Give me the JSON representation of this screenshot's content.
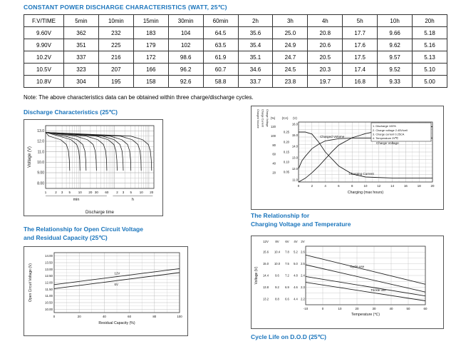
{
  "accent_color": "#1b75bc",
  "title": "CONSTANT POWER DISCHARGE CHARACTERISTICS (WATT, 25℃)",
  "note": "Note: The above characteristics data can be obtained within three charge/discharge cycles.",
  "table": {
    "headers": [
      "F.V/TIME",
      "5min",
      "10min",
      "15min",
      "30min",
      "60min",
      "2h",
      "3h",
      "4h",
      "5h",
      "10h",
      "20h"
    ],
    "rows": [
      [
        "9.60V",
        "362",
        "232",
        "183",
        "104",
        "64.5",
        "35.6",
        "25.0",
        "20.8",
        "17.7",
        "9.66",
        "5.18"
      ],
      [
        "9.90V",
        "351",
        "225",
        "179",
        "102",
        "63.5",
        "35.4",
        "24.9",
        "20.6",
        "17.6",
        "9.62",
        "5.16"
      ],
      [
        "10.2V",
        "337",
        "216",
        "172",
        "98.6",
        "61.9",
        "35.1",
        "24.7",
        "20.5",
        "17.5",
        "9.57",
        "5.13"
      ],
      [
        "10.5V",
        "323",
        "207",
        "166",
        "96.2",
        "60.7",
        "34.6",
        "24.5",
        "20.3",
        "17.4",
        "9.52",
        "5.10"
      ],
      [
        "10.8V",
        "304",
        "195",
        "158",
        "92.6",
        "58.8",
        "33.7",
        "23.8",
        "19.7",
        "16.8",
        "9.33",
        "5.00"
      ]
    ]
  },
  "sections": {
    "discharge_title": "Discharge Characteristics (25℃)",
    "ocv_title_line1": "The Relationship for Open Circuit Voltage",
    "ocv_title_line2": "and Residual Capacity (25℃)",
    "cvt_title_line1": "The Relationship for",
    "cvt_title_line2": "Charging Voltage and Temperature",
    "cycle_life_title": "Cycle Life on D.O.D (25℃)"
  },
  "chart_data": {
    "discharge": {
      "type": "line",
      "ylabel": "Voltage (V)",
      "xlabel": "Discharge time",
      "x_unit_labels": [
        "min",
        "h"
      ],
      "yticks": [
        13.0,
        12.0,
        11.0,
        10.0,
        9.0,
        8.0
      ],
      "ytick_labels": [
        "13.0",
        "12.0",
        "11.0",
        "10.0",
        "9.00",
        "8.00"
      ],
      "ylim": [
        7.5,
        13.5
      ],
      "xticks_min": [
        1,
        2,
        3,
        5,
        10,
        20,
        30,
        60
      ],
      "xticks_h": [
        2,
        3,
        5,
        10,
        20
      ],
      "series_end_times_min": [
        5,
        10,
        15,
        30,
        60,
        120,
        180,
        300,
        600,
        1200
      ],
      "start_voltage": 12.9,
      "end_voltage": 9.2
    },
    "charging": {
      "type": "line",
      "xlabel": "Charging (max hours)",
      "xticks": [
        0,
        2,
        4,
        6,
        8,
        10,
        12,
        14,
        16,
        18,
        20
      ],
      "axis_volume": {
        "name": "Charged Volume",
        "unit": "(%)",
        "ticks": [
          120,
          100,
          80,
          60,
          40,
          20
        ]
      },
      "axis_current": {
        "name": "Charge Current",
        "unit": "(CA)",
        "ticks": [
          0.25,
          0.2,
          0.15,
          0.1,
          0.05
        ]
      },
      "axis_voltage": {
        "name": "Charge Voltage",
        "unit": "(V)",
        "ticks": [
          16.0,
          15.0,
          14.0,
          13.0,
          12.0,
          11.0
        ]
      },
      "legend": [
        "1. Discharge 100%",
        "2. Charge voltage 2.45V/cell",
        "3. Charge current 0.25CA",
        "4. Temperature 25℃"
      ],
      "labels": {
        "volume": "Charged Volume",
        "voltage": "Charge Voltage",
        "current": "Charging Current"
      },
      "series": {
        "charged_volume_pct": {
          "x": [
            0,
            1,
            2,
            3,
            4,
            5,
            6,
            8,
            10,
            12,
            16,
            20
          ],
          "y": [
            0,
            8,
            20,
            34,
            50,
            66,
            80,
            96,
            105,
            111,
            117,
            120
          ]
        },
        "charge_voltage_v": {
          "x": [
            0,
            0.5,
            1,
            2,
            3,
            4,
            6,
            8,
            12,
            20
          ],
          "y": [
            12.0,
            12.7,
            13.1,
            13.8,
            14.2,
            14.5,
            14.7,
            14.75,
            14.75,
            14.75
          ]
        },
        "charge_current_ca": {
          "x": [
            0,
            1,
            2,
            3,
            4,
            6,
            8,
            10,
            14,
            20
          ],
          "y": [
            0.25,
            0.25,
            0.24,
            0.2,
            0.15,
            0.08,
            0.04,
            0.025,
            0.02,
            0.02
          ]
        }
      }
    },
    "open_circuit": {
      "type": "line",
      "ylabel": "Open Circuit Voltage (V)",
      "xlabel": "Residual Capacity (%)",
      "yticks": [
        14.0,
        13.5,
        13.0,
        12.5,
        12.0,
        11.5,
        11.0,
        10.5,
        10.0
      ],
      "ytick_labels": [
        "14.00",
        "13.50",
        "13.00",
        "12.50",
        "12.00",
        "11.50",
        "11.00",
        "10.50",
        "10.00"
      ],
      "xticks": [
        0,
        20,
        40,
        60,
        80,
        100
      ],
      "series": [
        {
          "name": "12V",
          "x": [
            0,
            100
          ],
          "y": [
            11.85,
            13.05
          ]
        },
        {
          "name": "6V",
          "x": [
            0,
            100
          ],
          "y": [
            11.55,
            12.75
          ]
        }
      ]
    },
    "charging_voltage_temperature": {
      "type": "line",
      "ylabel": "Voltage (V)",
      "xlabel": "Temperature (℃)",
      "col_headers": [
        "12V",
        "8V",
        "6V",
        "4V",
        "2V"
      ],
      "ytick_rows": [
        {
          "v": 15.6,
          "labels": [
            "15.6",
            "10.4",
            "7.8",
            "5.2",
            "2.6"
          ]
        },
        {
          "v": 15.0,
          "labels": [
            "15.0",
            "10.0",
            "7.5",
            "5.0",
            "2.5"
          ]
        },
        {
          "v": 14.4,
          "labels": [
            "14.4",
            "9.6",
            "7.2",
            "4.8",
            "2.4"
          ]
        },
        {
          "v": 13.8,
          "labels": [
            "13.8",
            "9.2",
            "6.9",
            "4.6",
            "2.3"
          ]
        },
        {
          "v": 13.2,
          "labels": [
            "13.2",
            "8.8",
            "6.6",
            "4.4",
            "2.2"
          ]
        }
      ],
      "xticks": [
        -10,
        0,
        10,
        20,
        30,
        40,
        50,
        60
      ],
      "bands": [
        {
          "name": "Cycle use",
          "x": [
            -10,
            60
          ],
          "upper_y": [
            15.45,
            13.95
          ],
          "lower_y": [
            14.95,
            13.55
          ]
        },
        {
          "name": "Trickle use",
          "x": [
            -10,
            60
          ],
          "upper_y": [
            14.35,
            13.35
          ],
          "lower_y": [
            14.05,
            13.1
          ]
        }
      ]
    }
  }
}
